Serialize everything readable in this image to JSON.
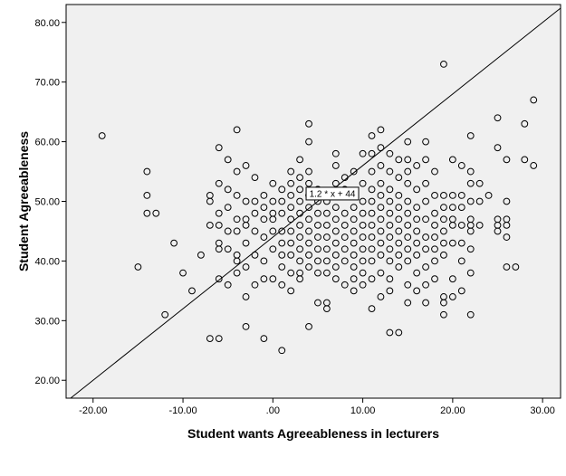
{
  "chart_data": {
    "type": "scatter",
    "xlabel": "Student wants Agreeableness in lecturers",
    "ylabel": "Student Agreeableness",
    "xlim": [
      -23,
      32
    ],
    "ylim": [
      17,
      83
    ],
    "x_ticks": [
      -20,
      -10,
      0,
      10,
      20,
      30
    ],
    "x_tick_labels": [
      "-20.00",
      "-10.00",
      ".00",
      "10.00",
      "20.00",
      "30.00"
    ],
    "y_ticks": [
      20,
      30,
      40,
      50,
      60,
      70,
      80
    ],
    "y_tick_labels": [
      "20.00",
      "30.00",
      "40.00",
      "50.00",
      "60.00",
      "70.00",
      "80.00"
    ],
    "grid": false,
    "fit_line": {
      "slope": 1.2,
      "intercept": 44,
      "label": "1.2 * x + 44",
      "label_at": [
        4,
        51.3
      ]
    },
    "colors": {
      "plot_background": "#f0f0f0",
      "marker_stroke": "#000000",
      "line": "#000000"
    },
    "series": [
      {
        "marker": "hollow-circle",
        "points": [
          [
            -19,
            61
          ],
          [
            -15,
            39
          ],
          [
            -14,
            55
          ],
          [
            -14,
            51
          ],
          [
            -14,
            48
          ],
          [
            -13,
            48
          ],
          [
            -12,
            31
          ],
          [
            -11,
            43
          ],
          [
            -10,
            38
          ],
          [
            -9,
            35
          ],
          [
            -8,
            41
          ],
          [
            -7,
            51
          ],
          [
            -7,
            50
          ],
          [
            -7,
            46
          ],
          [
            -7,
            27
          ],
          [
            -6,
            59
          ],
          [
            -6,
            53
          ],
          [
            -6,
            48
          ],
          [
            -6,
            46
          ],
          [
            -6,
            43
          ],
          [
            -6,
            42
          ],
          [
            -6,
            37
          ],
          [
            -6,
            27
          ],
          [
            -5,
            57
          ],
          [
            -5,
            52
          ],
          [
            -5,
            49
          ],
          [
            -5,
            45
          ],
          [
            -5,
            42
          ],
          [
            -5,
            36
          ],
          [
            -4,
            62
          ],
          [
            -4,
            55
          ],
          [
            -4,
            51
          ],
          [
            -4,
            47
          ],
          [
            -4,
            45
          ],
          [
            -4,
            41
          ],
          [
            -4,
            40
          ],
          [
            -4,
            38
          ],
          [
            -3,
            56
          ],
          [
            -3,
            50
          ],
          [
            -3,
            47
          ],
          [
            -3,
            46
          ],
          [
            -3,
            43
          ],
          [
            -3,
            39
          ],
          [
            -3,
            34
          ],
          [
            -3,
            29
          ],
          [
            -2,
            54
          ],
          [
            -2,
            50
          ],
          [
            -2,
            48
          ],
          [
            -2,
            45
          ],
          [
            -2,
            41
          ],
          [
            -2,
            36
          ],
          [
            -1,
            51
          ],
          [
            -1,
            49
          ],
          [
            -1,
            47
          ],
          [
            -1,
            44
          ],
          [
            -1,
            40
          ],
          [
            -1,
            37
          ],
          [
            -1,
            27
          ],
          [
            0,
            53
          ],
          [
            0,
            50
          ],
          [
            0,
            48
          ],
          [
            0,
            47
          ],
          [
            0,
            45
          ],
          [
            0,
            42
          ],
          [
            0,
            37
          ],
          [
            1,
            52
          ],
          [
            1,
            50
          ],
          [
            1,
            48
          ],
          [
            1,
            45
          ],
          [
            1,
            43
          ],
          [
            1,
            41
          ],
          [
            1,
            39
          ],
          [
            1,
            36
          ],
          [
            1,
            25
          ],
          [
            2,
            55
          ],
          [
            2,
            53
          ],
          [
            2,
            51
          ],
          [
            2,
            49
          ],
          [
            2,
            47
          ],
          [
            2,
            45
          ],
          [
            2,
            43
          ],
          [
            2,
            41
          ],
          [
            2,
            38
          ],
          [
            2,
            35
          ],
          [
            3,
            57
          ],
          [
            3,
            54
          ],
          [
            3,
            52
          ],
          [
            3,
            50
          ],
          [
            3,
            48
          ],
          [
            3,
            46
          ],
          [
            3,
            44
          ],
          [
            3,
            42
          ],
          [
            3,
            40
          ],
          [
            3,
            38
          ],
          [
            3,
            37
          ],
          [
            4,
            63
          ],
          [
            4,
            60
          ],
          [
            4,
            55
          ],
          [
            4,
            53
          ],
          [
            4,
            51
          ],
          [
            4,
            49
          ],
          [
            4,
            47
          ],
          [
            4,
            45
          ],
          [
            4,
            43
          ],
          [
            4,
            41
          ],
          [
            4,
            39
          ],
          [
            4,
            29
          ],
          [
            5,
            52
          ],
          [
            5,
            50
          ],
          [
            5,
            48
          ],
          [
            5,
            46
          ],
          [
            5,
            44
          ],
          [
            5,
            42
          ],
          [
            5,
            40
          ],
          [
            5,
            38
          ],
          [
            5,
            33
          ],
          [
            6,
            50
          ],
          [
            6,
            48
          ],
          [
            6,
            46
          ],
          [
            6,
            44
          ],
          [
            6,
            42
          ],
          [
            6,
            40
          ],
          [
            6,
            38
          ],
          [
            6,
            33
          ],
          [
            6,
            32
          ],
          [
            7,
            58
          ],
          [
            7,
            56
          ],
          [
            7,
            53
          ],
          [
            7,
            51
          ],
          [
            7,
            49
          ],
          [
            7,
            47
          ],
          [
            7,
            45
          ],
          [
            7,
            43
          ],
          [
            7,
            41
          ],
          [
            7,
            39
          ],
          [
            7,
            37
          ],
          [
            8,
            54
          ],
          [
            8,
            52
          ],
          [
            8,
            48
          ],
          [
            8,
            46
          ],
          [
            8,
            44
          ],
          [
            8,
            42
          ],
          [
            8,
            40
          ],
          [
            8,
            36
          ],
          [
            9,
            55
          ],
          [
            9,
            51
          ],
          [
            9,
            49
          ],
          [
            9,
            47
          ],
          [
            9,
            45
          ],
          [
            9,
            43
          ],
          [
            9,
            41
          ],
          [
            9,
            39
          ],
          [
            9,
            37
          ],
          [
            9,
            35
          ],
          [
            10,
            58
          ],
          [
            10,
            53
          ],
          [
            10,
            50
          ],
          [
            10,
            48
          ],
          [
            10,
            46
          ],
          [
            10,
            44
          ],
          [
            10,
            42
          ],
          [
            10,
            40
          ],
          [
            10,
            38
          ],
          [
            10,
            36
          ],
          [
            11,
            61
          ],
          [
            11,
            58
          ],
          [
            11,
            55
          ],
          [
            11,
            52
          ],
          [
            11,
            50
          ],
          [
            11,
            48
          ],
          [
            11,
            46
          ],
          [
            11,
            44
          ],
          [
            11,
            42
          ],
          [
            11,
            40
          ],
          [
            11,
            37
          ],
          [
            11,
            32
          ],
          [
            12,
            62
          ],
          [
            12,
            59
          ],
          [
            12,
            56
          ],
          [
            12,
            53
          ],
          [
            12,
            51
          ],
          [
            12,
            49
          ],
          [
            12,
            47
          ],
          [
            12,
            45
          ],
          [
            12,
            43
          ],
          [
            12,
            41
          ],
          [
            12,
            38
          ],
          [
            12,
            34
          ],
          [
            13,
            58
          ],
          [
            13,
            55
          ],
          [
            13,
            52
          ],
          [
            13,
            50
          ],
          [
            13,
            48
          ],
          [
            13,
            46
          ],
          [
            13,
            44
          ],
          [
            13,
            42
          ],
          [
            13,
            40
          ],
          [
            13,
            37
          ],
          [
            13,
            35
          ],
          [
            13,
            28
          ],
          [
            14,
            57
          ],
          [
            14,
            54
          ],
          [
            14,
            51
          ],
          [
            14,
            49
          ],
          [
            14,
            47
          ],
          [
            14,
            45
          ],
          [
            14,
            43
          ],
          [
            14,
            41
          ],
          [
            14,
            39
          ],
          [
            14,
            28
          ],
          [
            15,
            60
          ],
          [
            15,
            57
          ],
          [
            15,
            55
          ],
          [
            15,
            53
          ],
          [
            15,
            50
          ],
          [
            15,
            48
          ],
          [
            15,
            46
          ],
          [
            15,
            44
          ],
          [
            15,
            42
          ],
          [
            15,
            40
          ],
          [
            15,
            36
          ],
          [
            15,
            33
          ],
          [
            16,
            56
          ],
          [
            16,
            52
          ],
          [
            16,
            49
          ],
          [
            16,
            47
          ],
          [
            16,
            45
          ],
          [
            16,
            43
          ],
          [
            16,
            41
          ],
          [
            16,
            38
          ],
          [
            16,
            35
          ],
          [
            17,
            60
          ],
          [
            17,
            57
          ],
          [
            17,
            53
          ],
          [
            17,
            50
          ],
          [
            17,
            47
          ],
          [
            17,
            44
          ],
          [
            17,
            42
          ],
          [
            17,
            39
          ],
          [
            17,
            36
          ],
          [
            17,
            33
          ],
          [
            18,
            55
          ],
          [
            18,
            51
          ],
          [
            18,
            48
          ],
          [
            18,
            46
          ],
          [
            18,
            44
          ],
          [
            18,
            42
          ],
          [
            18,
            40
          ],
          [
            18,
            37
          ],
          [
            19,
            73
          ],
          [
            19,
            51
          ],
          [
            19,
            49
          ],
          [
            19,
            47
          ],
          [
            19,
            45
          ],
          [
            19,
            43
          ],
          [
            19,
            41
          ],
          [
            19,
            34
          ],
          [
            19,
            33
          ],
          [
            19,
            31
          ],
          [
            20,
            57
          ],
          [
            20,
            51
          ],
          [
            20,
            49
          ],
          [
            20,
            47
          ],
          [
            20,
            46
          ],
          [
            20,
            43
          ],
          [
            20,
            37
          ],
          [
            20,
            34
          ],
          [
            21,
            56
          ],
          [
            21,
            51
          ],
          [
            21,
            49
          ],
          [
            21,
            46
          ],
          [
            21,
            43
          ],
          [
            21,
            40
          ],
          [
            21,
            35
          ],
          [
            22,
            61
          ],
          [
            22,
            55
          ],
          [
            22,
            53
          ],
          [
            22,
            50
          ],
          [
            22,
            47
          ],
          [
            22,
            46
          ],
          [
            22,
            45
          ],
          [
            22,
            42
          ],
          [
            22,
            38
          ],
          [
            22,
            31
          ],
          [
            23,
            53
          ],
          [
            23,
            50
          ],
          [
            23,
            46
          ],
          [
            24,
            51
          ],
          [
            25,
            64
          ],
          [
            25,
            59
          ],
          [
            25,
            47
          ],
          [
            25,
            46
          ],
          [
            25,
            45
          ],
          [
            26,
            57
          ],
          [
            26,
            50
          ],
          [
            26,
            47
          ],
          [
            26,
            46
          ],
          [
            26,
            44
          ],
          [
            26,
            39
          ],
          [
            27,
            39
          ],
          [
            28,
            63
          ],
          [
            28,
            57
          ],
          [
            29,
            67
          ],
          [
            29,
            56
          ]
        ]
      }
    ]
  }
}
